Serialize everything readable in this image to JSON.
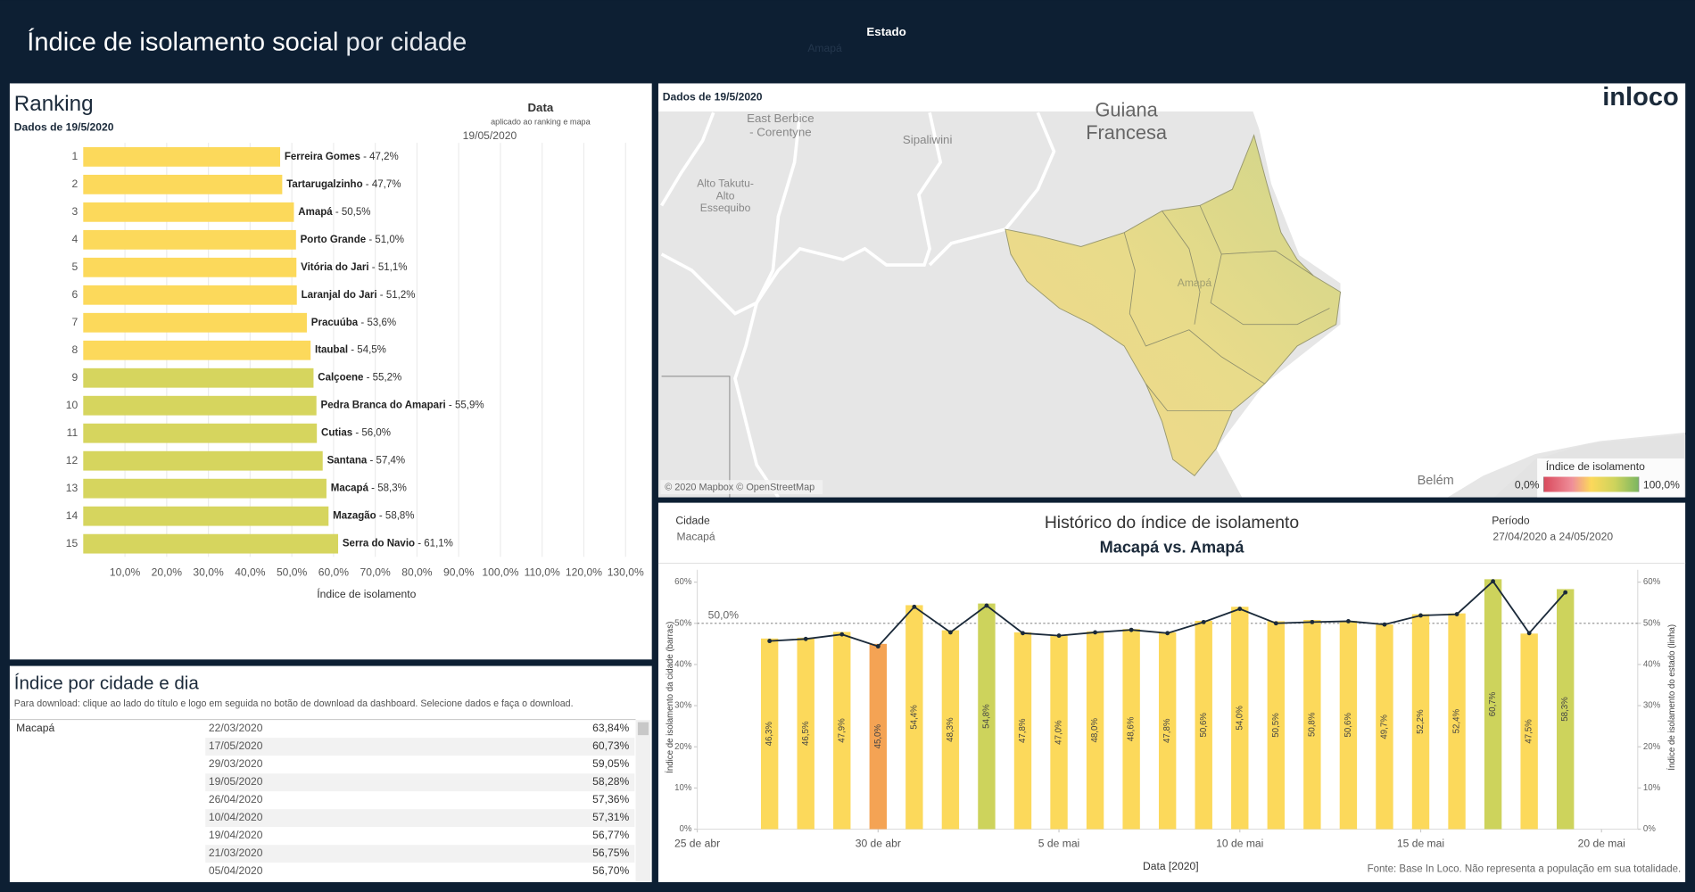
{
  "header": {
    "title": "Índice de isolamento social",
    "title_suffix": "por cidade",
    "filter_label": "Estado",
    "filter_value": "Amapá"
  },
  "ranking": {
    "title": "Ranking",
    "subtitle": "Dados de 19/5/2020",
    "date_filter": {
      "label": "Data",
      "note": "aplicado ao ranking e mapa",
      "value": "19/05/2020"
    },
    "chart_data": {
      "type": "bar",
      "orientation": "horizontal",
      "ranks": [
        1,
        2,
        3,
        4,
        5,
        6,
        7,
        8,
        9,
        10,
        11,
        12,
        13,
        14,
        15
      ],
      "categories": [
        "Ferreira Gomes",
        "Tartarugalzinho",
        "Amapá",
        "Porto Grande",
        "Vitória do Jari",
        "Laranjal do Jari",
        "Pracuúba",
        "Itaubal",
        "Calçoene",
        "Pedra Branca do Amapari",
        "Cutias",
        "Santana",
        "Macapá",
        "Mazagão",
        "Serra do Navio"
      ],
      "values": [
        47.2,
        47.7,
        50.5,
        51.0,
        51.1,
        51.2,
        53.6,
        54.5,
        55.2,
        55.9,
        56.0,
        57.4,
        58.3,
        58.8,
        61.1
      ],
      "value_labels": [
        "47,2%",
        "47,7%",
        "50,5%",
        "51,0%",
        "51,1%",
        "51,2%",
        "53,6%",
        "54,5%",
        "55,2%",
        "55,9%",
        "56,0%",
        "57,4%",
        "58,3%",
        "58,8%",
        "61,1%"
      ],
      "separator": " - ",
      "colors": [
        "#fcd95b",
        "#fcd95b",
        "#fcd95b",
        "#fcd95b",
        "#fcd95b",
        "#fcd95b",
        "#fcd95b",
        "#fcd95b",
        "#d6d55e",
        "#d6d55e",
        "#d6d55e",
        "#d6d55e",
        "#d6d55e",
        "#d6d55e",
        "#d6d55e"
      ],
      "xlim": [
        0,
        135
      ],
      "xticks": [
        {
          "value": 10,
          "label": "10,0%"
        },
        {
          "value": 20,
          "label": "20,0%"
        },
        {
          "value": 30,
          "label": "30,0%"
        },
        {
          "value": 40,
          "label": "40,0%"
        },
        {
          "value": 50,
          "label": "50,0%"
        },
        {
          "value": 60,
          "label": "60,0%"
        },
        {
          "value": 70,
          "label": "70,0%"
        },
        {
          "value": 80,
          "label": "80,0%"
        },
        {
          "value": 90,
          "label": "90,0%"
        },
        {
          "value": 100,
          "label": "100,0%"
        },
        {
          "value": 110,
          "label": "110,0%"
        },
        {
          "value": 120,
          "label": "120,0%"
        },
        {
          "value": 130,
          "label": "130,0%"
        }
      ],
      "xlabel": "Índice de isolamento",
      "grid": true
    }
  },
  "map": {
    "subtitle": "Dados de 19/5/2020",
    "logo": "inloco",
    "attribution": "© 2020 Mapbox © OpenStreetMap",
    "places": [
      {
        "lines": [
          "East Berbice",
          "- Corentyne"
        ]
      },
      {
        "lines": [
          "Sipaliwini"
        ]
      },
      {
        "lines": [
          "Guiana",
          "Francesa"
        ]
      },
      {
        "lines": [
          "Alto Takutu-",
          "Alto",
          "Essequibo"
        ]
      },
      {
        "lines": [
          "Amapá"
        ]
      },
      {
        "lines": [
          "Belém"
        ]
      }
    ],
    "legend": {
      "title": "Índice de isolamento",
      "min": {
        "value": 0,
        "label": "0,0%"
      },
      "max": {
        "value": 100,
        "label": "100,0%"
      }
    }
  },
  "table": {
    "title": "Índice por cidade e dia",
    "subtitle": "Para download: clique ao lado do título e logo em seguida no botão de download da dashboard. Selecione dados e faça o download.",
    "city": "Macapá",
    "rows": [
      [
        "22/03/2020",
        "63,84%"
      ],
      [
        "17/05/2020",
        "60,73%"
      ],
      [
        "29/03/2020",
        "59,05%"
      ],
      [
        "19/05/2020",
        "58,28%"
      ],
      [
        "26/04/2020",
        "57,36%"
      ],
      [
        "10/04/2020",
        "57,31%"
      ],
      [
        "19/04/2020",
        "56,77%"
      ],
      [
        "21/03/2020",
        "56,75%"
      ],
      [
        "05/04/2020",
        "56,70%"
      ]
    ]
  },
  "history": {
    "city_filter": {
      "label": "Cidade",
      "value": "Macapá"
    },
    "period_filter": {
      "label": "Período",
      "value": "27/04/2020 a 24/05/2020"
    },
    "source": "Fonte: Base In Loco. Não representa a população em sua totalidade.",
    "chart_data": {
      "type": "bar-line",
      "title": "Histórico do índice de isolamento",
      "subtitle": "Macapá vs. Amapá",
      "x": [
        "2020-04-27",
        "2020-04-28",
        "2020-04-29",
        "2020-04-30",
        "2020-05-01",
        "2020-05-02",
        "2020-05-03",
        "2020-05-04",
        "2020-05-05",
        "2020-05-06",
        "2020-05-07",
        "2020-05-08",
        "2020-05-09",
        "2020-05-10",
        "2020-05-11",
        "2020-05-12",
        "2020-05-13",
        "2020-05-14",
        "2020-05-15",
        "2020-05-16",
        "2020-05-17",
        "2020-05-18",
        "2020-05-19"
      ],
      "xlim": [
        "2020-04-25",
        "2020-05-21"
      ],
      "xticks": [
        {
          "value": "2020-04-25",
          "label": "25 de abr"
        },
        {
          "value": "2020-04-30",
          "label": "30 de abr"
        },
        {
          "value": "2020-05-05",
          "label": "5 de mai"
        },
        {
          "value": "2020-05-10",
          "label": "10 de mai"
        },
        {
          "value": "2020-05-15",
          "label": "15 de mai"
        },
        {
          "value": "2020-05-20",
          "label": "20 de mai"
        }
      ],
      "series": [
        {
          "type": "bar",
          "colors": [
            "#fcd95b",
            "#fcd95b",
            "#fcd95b",
            "#f4a354",
            "#fcd95b",
            "#fcd95b",
            "#cdd35c",
            "#fcd95b",
            "#fcd95b",
            "#fcd95b",
            "#fcd95b",
            "#fcd95b",
            "#fcd95b",
            "#fcd95b",
            "#fcd95b",
            "#fcd95b",
            "#fcd95b",
            "#fcd95b",
            "#fcd95b",
            "#fcd95b",
            "#cdd35c",
            "#fcd95b",
            "#cdd35c"
          ],
          "values": [
            46.3,
            46.5,
            47.9,
            45.0,
            54.4,
            48.3,
            54.8,
            47.8,
            47.0,
            48.0,
            48.6,
            47.8,
            50.6,
            54.0,
            50.5,
            50.8,
            50.6,
            49.7,
            52.2,
            52.4,
            60.7,
            47.5,
            58.3
          ],
          "value_labels": [
            "46,3%",
            "46,5%",
            "47,9%",
            "45,0%",
            "54,4%",
            "48,3%",
            "54,8%",
            "47,8%",
            "47,0%",
            "48,0%",
            "48,6%",
            "47,8%",
            "50,6%",
            "54,0%",
            "50,5%",
            "50,8%",
            "50,6%",
            "49,7%",
            "52,2%",
            "52,4%",
            "60,7%",
            "47,5%",
            "58,3%"
          ]
        },
        {
          "type": "line",
          "axis": "y2",
          "color": "#1b2a3a",
          "values": [
            45.7,
            46.2,
            47.3,
            44.4,
            54.0,
            47.8,
            54.3,
            47.6,
            47.0,
            47.8,
            48.4,
            47.6,
            50.3,
            53.5,
            50.0,
            50.3,
            50.5,
            49.7,
            51.9,
            52.2,
            60.2,
            47.6,
            57.5
          ]
        }
      ],
      "ylim": [
        0,
        63
      ],
      "yticks": [
        {
          "value": 0,
          "label": "0%"
        },
        {
          "value": 10,
          "label": "10%"
        },
        {
          "value": 20,
          "label": "20%"
        },
        {
          "value": 30,
          "label": "30%"
        },
        {
          "value": 40,
          "label": "40%"
        },
        {
          "value": 50,
          "label": "50%"
        },
        {
          "value": 60,
          "label": "60%"
        }
      ],
      "y2lim": [
        0,
        63
      ],
      "y2ticks": [
        {
          "value": 0,
          "label": "0%"
        },
        {
          "value": 10,
          "label": "10%"
        },
        {
          "value": 20,
          "label": "20%"
        },
        {
          "value": 30,
          "label": "30%"
        },
        {
          "value": 40,
          "label": "40%"
        },
        {
          "value": 50,
          "label": "50%"
        },
        {
          "value": 60,
          "label": "60%"
        }
      ],
      "ylabel": "Índice de isolamento da cidade (barras)",
      "y2label": "Índice de isolamento do estado (linha)",
      "xlabel": "Data [2020]",
      "reference_line": {
        "value": 50,
        "label": "50,0%"
      },
      "grid": false
    }
  }
}
